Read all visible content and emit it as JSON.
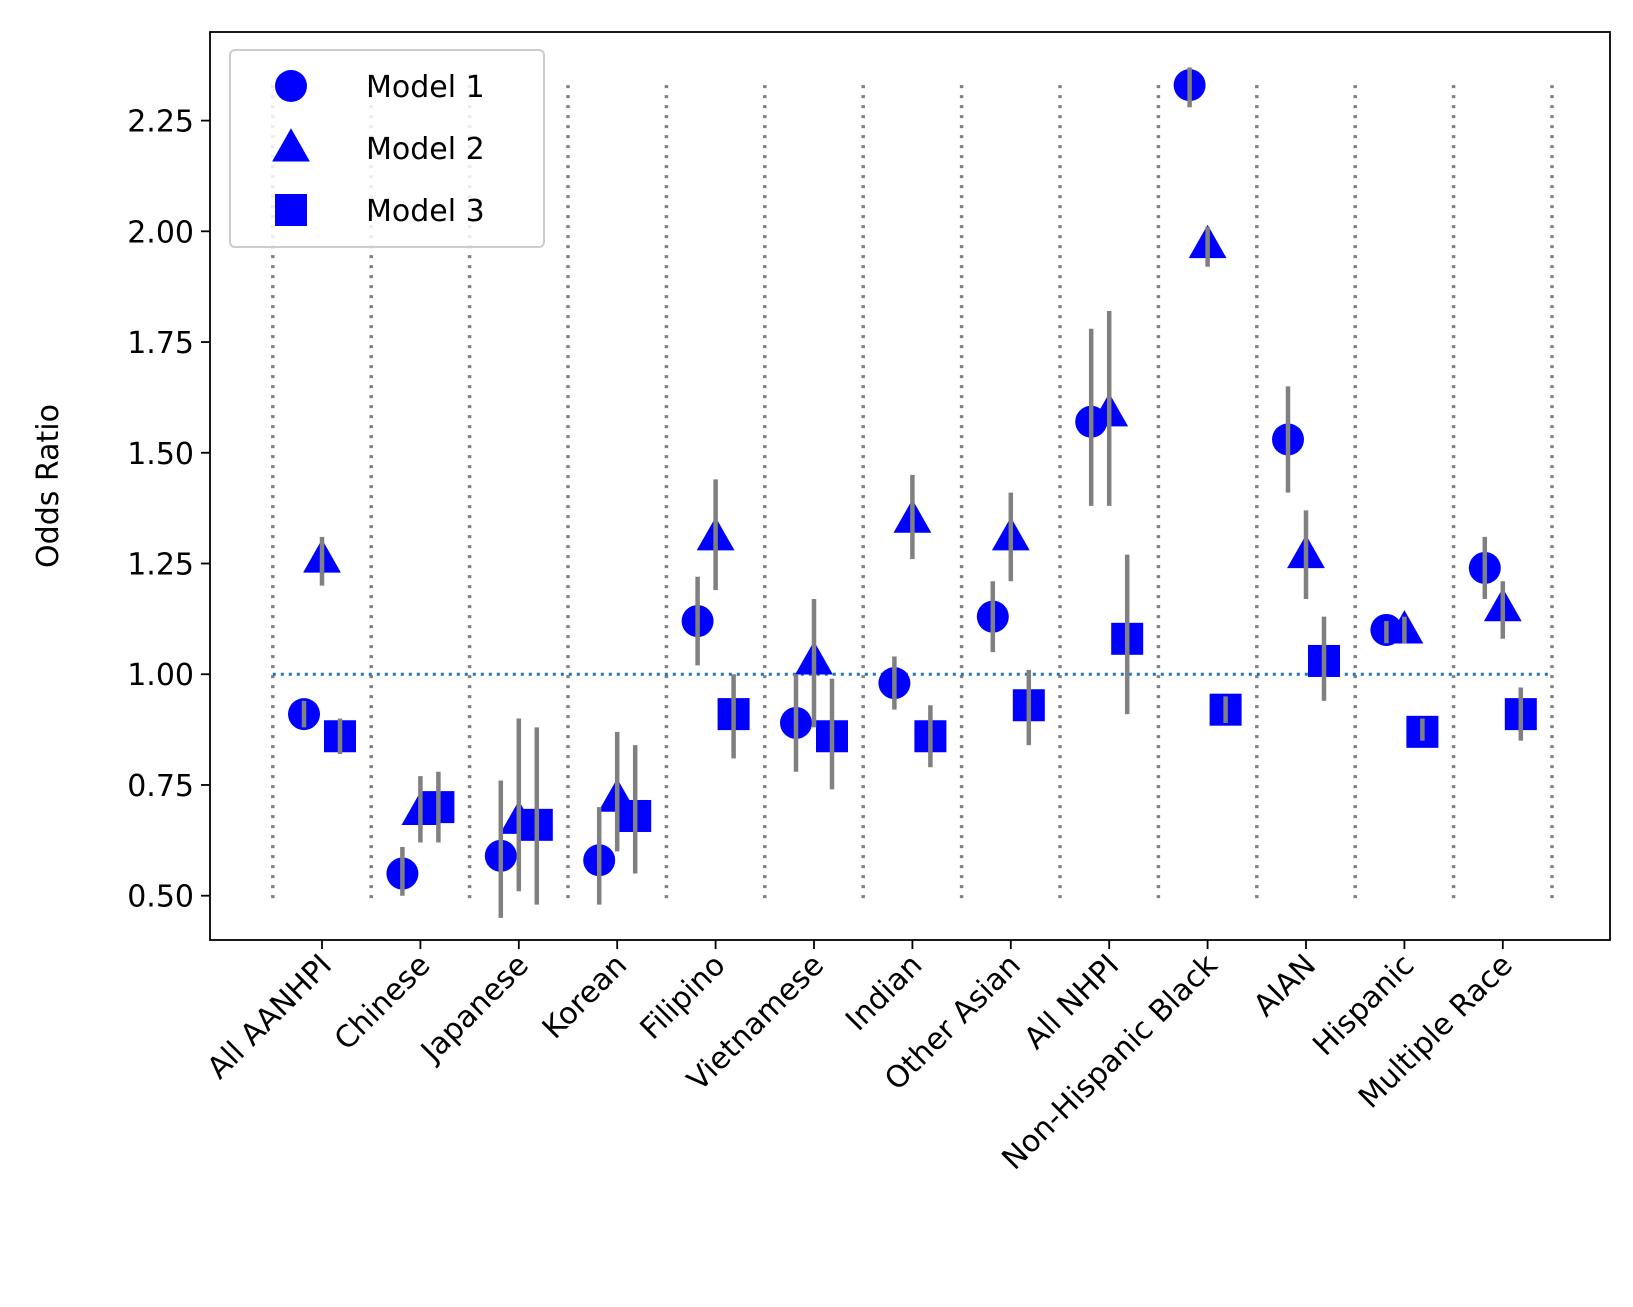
{
  "chart_data": {
    "type": "scatter",
    "title": "",
    "xlabel": "",
    "ylabel": "Odds Ratio",
    "ylim": [
      0.4,
      2.45
    ],
    "yticks": [
      "0.50",
      "0.75",
      "1.00",
      "1.25",
      "1.50",
      "1.75",
      "2.00",
      "2.25"
    ],
    "ytick_values": [
      0.5,
      0.75,
      1.0,
      1.25,
      1.5,
      1.75,
      2.0,
      2.25
    ],
    "categories": [
      "All AANHPI",
      "Chinese",
      "Japanese",
      "Korean",
      "Filipino",
      "Vietnamese",
      "Indian",
      "Other Asian",
      "All NHPI",
      "Non-Hispanic Black",
      "AIAN",
      "Hispanic",
      "Multiple Race"
    ],
    "reference_line": {
      "y": 1.0,
      "style": "dotted",
      "color": "#1f77b4"
    },
    "grid": false,
    "legend_position": "upper-left",
    "series": [
      {
        "name": "Model 1",
        "marker": "circle",
        "color": "#0000ff",
        "values": [
          0.91,
          0.55,
          0.59,
          0.58,
          1.12,
          0.89,
          0.98,
          1.13,
          1.57,
          2.33,
          1.53,
          1.1,
          1.24
        ],
        "ci_low": [
          0.88,
          0.5,
          0.45,
          0.48,
          1.02,
          0.78,
          0.92,
          1.05,
          1.38,
          2.28,
          1.41,
          1.07,
          1.17
        ],
        "ci_high": [
          0.94,
          0.61,
          0.76,
          0.7,
          1.22,
          1.0,
          1.04,
          1.21,
          1.78,
          2.37,
          1.65,
          1.12,
          1.31
        ]
      },
      {
        "name": "Model 2",
        "marker": "triangle",
        "color": "#0000ff",
        "values": [
          1.26,
          0.69,
          0.67,
          0.72,
          1.31,
          1.03,
          1.35,
          1.31,
          1.59,
          1.97,
          1.27,
          1.1,
          1.15
        ],
        "ci_low": [
          1.2,
          0.62,
          0.51,
          0.6,
          1.19,
          0.88,
          1.26,
          1.21,
          1.38,
          1.92,
          1.17,
          1.07,
          1.08
        ],
        "ci_high": [
          1.31,
          0.77,
          0.9,
          0.87,
          1.44,
          1.17,
          1.45,
          1.41,
          1.82,
          2.01,
          1.37,
          1.13,
          1.21
        ]
      },
      {
        "name": "Model 3",
        "marker": "square",
        "color": "#0000ff",
        "values": [
          0.86,
          0.7,
          0.66,
          0.68,
          0.91,
          0.86,
          0.86,
          0.93,
          1.08,
          0.92,
          1.03,
          0.87,
          0.91
        ],
        "ci_low": [
          0.82,
          0.62,
          0.48,
          0.55,
          0.81,
          0.74,
          0.79,
          0.84,
          0.91,
          0.89,
          0.94,
          0.85,
          0.85
        ],
        "ci_high": [
          0.9,
          0.78,
          0.88,
          0.84,
          1.0,
          0.99,
          0.93,
          1.01,
          1.27,
          0.95,
          1.13,
          0.9,
          0.97
        ]
      }
    ]
  }
}
